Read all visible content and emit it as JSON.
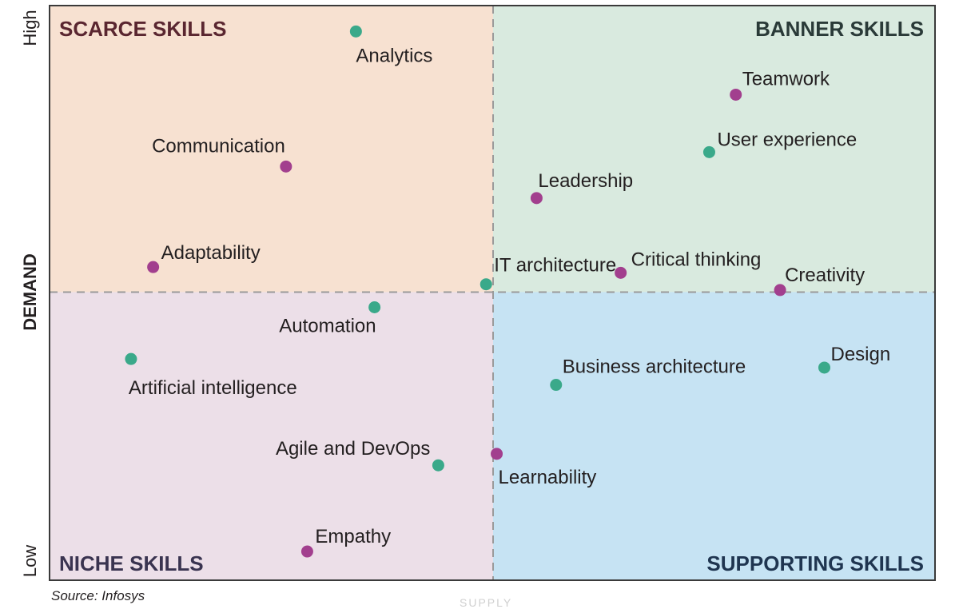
{
  "chart_data": {
    "type": "scatter",
    "title": "",
    "xlabel": "SUPPLY",
    "ylabel": "DEMAND",
    "xlim": [
      0,
      1
    ],
    "ylim": [
      0,
      1
    ],
    "y_tick_low": "Low",
    "y_tick_high": "High",
    "quadrants": {
      "top_left": "SCARCE SKILLS",
      "top_right": "BANNER SKILLS",
      "bottom_left": "NICHE SKILLS",
      "bottom_right": "SUPPORTING SKILLS"
    },
    "points": [
      {
        "label": "Analytics",
        "x": 0.346,
        "y": 0.955,
        "color": "#3aa98a"
      },
      {
        "label": "Communication",
        "x": 0.267,
        "y": 0.72,
        "color": "#a23f8e"
      },
      {
        "label": "Adaptability",
        "x": 0.117,
        "y": 0.545,
        "color": "#a23f8e"
      },
      {
        "label": "Teamwork",
        "x": 0.775,
        "y": 0.845,
        "color": "#a23f8e"
      },
      {
        "label": "User experience",
        "x": 0.745,
        "y": 0.745,
        "color": "#3aa98a"
      },
      {
        "label": "Leadership",
        "x": 0.55,
        "y": 0.665,
        "color": "#a23f8e"
      },
      {
        "label": "Critical thinking",
        "x": 0.645,
        "y": 0.535,
        "color": "#a23f8e"
      },
      {
        "label": "IT architecture",
        "x": 0.493,
        "y": 0.515,
        "color": "#3aa98a"
      },
      {
        "label": "Creativity",
        "x": 0.825,
        "y": 0.505,
        "color": "#a23f8e"
      },
      {
        "label": "Automation",
        "x": 0.367,
        "y": 0.475,
        "color": "#3aa98a"
      },
      {
        "label": "Artificial intelligence",
        "x": 0.092,
        "y": 0.385,
        "color": "#3aa98a"
      },
      {
        "label": "Design",
        "x": 0.875,
        "y": 0.37,
        "color": "#3aa98a"
      },
      {
        "label": "Business architecture",
        "x": 0.572,
        "y": 0.34,
        "color": "#3aa98a"
      },
      {
        "label": "Agile and DevOps",
        "x": 0.439,
        "y": 0.2,
        "color": "#3aa98a"
      },
      {
        "label": "Learnability",
        "x": 0.505,
        "y": 0.22,
        "color": "#a23f8e"
      },
      {
        "label": "Empathy",
        "x": 0.291,
        "y": 0.05,
        "color": "#a23f8e"
      }
    ],
    "colors": {
      "scarce_bg": "#f7e1d1",
      "banner_bg": "#d9eadf",
      "niche_bg": "#ecdfe8",
      "supporting_bg": "#c6e3f3",
      "scarce_text": "#5a2630",
      "banner_text": "#2a3a38",
      "niche_text": "#3a3450",
      "supporting_text": "#1f3550",
      "teal": "#3aa98a",
      "magenta": "#a23f8e"
    }
  },
  "source": "Source: Infosys"
}
